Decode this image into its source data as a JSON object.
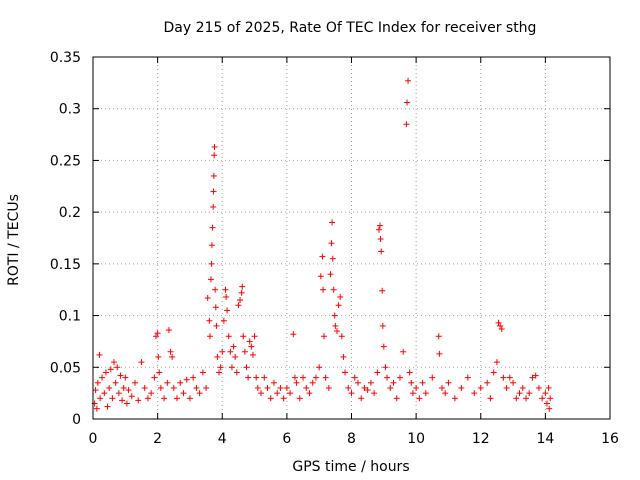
{
  "chart_data": {
    "type": "scatter",
    "title": "Day 215 of 2025, Rate Of TEC Index for receiver sthg",
    "xlabel": "GPS time / hours",
    "ylabel": "ROTI / TECUs",
    "xlim": [
      0,
      16
    ],
    "ylim": [
      0,
      0.35
    ],
    "x_ticks": [
      0,
      2,
      4,
      6,
      8,
      10,
      12,
      14,
      16
    ],
    "x_tick_labels": [
      "0",
      "2",
      "4",
      "6",
      "8",
      "10",
      "12",
      "14",
      "16"
    ],
    "y_ticks": [
      0,
      0.05,
      0.1,
      0.15,
      0.2,
      0.25,
      0.3,
      0.35
    ],
    "y_tick_labels": [
      "0",
      "0.05",
      "0.1",
      "0.15",
      "0.2",
      "0.25",
      "0.3",
      "0.35"
    ],
    "grid": true,
    "marker": "+",
    "color": "#ff0000",
    "series": [
      {
        "name": "ROTI",
        "points": [
          [
            0.05,
            0.015
          ],
          [
            0.08,
            0.028
          ],
          [
            0.12,
            0.01
          ],
          [
            0.15,
            0.035
          ],
          [
            0.2,
            0.062
          ],
          [
            0.22,
            0.02
          ],
          [
            0.28,
            0.04
          ],
          [
            0.35,
            0.025
          ],
          [
            0.4,
            0.045
          ],
          [
            0.45,
            0.012
          ],
          [
            0.5,
            0.03
          ],
          [
            0.55,
            0.048
          ],
          [
            0.6,
            0.02
          ],
          [
            0.65,
            0.055
          ],
          [
            0.7,
            0.035
          ],
          [
            0.75,
            0.05
          ],
          [
            0.8,
            0.025
          ],
          [
            0.85,
            0.042
          ],
          [
            0.9,
            0.018
          ],
          [
            0.95,
            0.03
          ],
          [
            1.0,
            0.04
          ],
          [
            1.05,
            0.015
          ],
          [
            1.1,
            0.028
          ],
          [
            1.2,
            0.022
          ],
          [
            1.3,
            0.035
          ],
          [
            1.4,
            0.018
          ],
          [
            1.5,
            0.055
          ],
          [
            1.6,
            0.03
          ],
          [
            1.7,
            0.02
          ],
          [
            1.8,
            0.025
          ],
          [
            1.9,
            0.04
          ],
          [
            1.95,
            0.08
          ],
          [
            2.0,
            0.083
          ],
          [
            2.02,
            0.06
          ],
          [
            2.05,
            0.045
          ],
          [
            2.1,
            0.03
          ],
          [
            2.2,
            0.02
          ],
          [
            2.3,
            0.035
          ],
          [
            2.35,
            0.086
          ],
          [
            2.4,
            0.065
          ],
          [
            2.45,
            0.06
          ],
          [
            2.5,
            0.03
          ],
          [
            2.6,
            0.02
          ],
          [
            2.7,
            0.035
          ],
          [
            2.8,
            0.025
          ],
          [
            2.9,
            0.038
          ],
          [
            3.0,
            0.02
          ],
          [
            3.1,
            0.04
          ],
          [
            3.2,
            0.03
          ],
          [
            3.3,
            0.025
          ],
          [
            3.4,
            0.045
          ],
          [
            3.5,
            0.03
          ],
          [
            3.55,
            0.117
          ],
          [
            3.6,
            0.095
          ],
          [
            3.62,
            0.08
          ],
          [
            3.65,
            0.135
          ],
          [
            3.67,
            0.15
          ],
          [
            3.68,
            0.168
          ],
          [
            3.7,
            0.185
          ],
          [
            3.72,
            0.205
          ],
          [
            3.73,
            0.22
          ],
          [
            3.74,
            0.235
          ],
          [
            3.75,
            0.255
          ],
          [
            3.76,
            0.263
          ],
          [
            3.78,
            0.125
          ],
          [
            3.8,
            0.108
          ],
          [
            3.82,
            0.09
          ],
          [
            3.85,
            0.06
          ],
          [
            3.9,
            0.045
          ],
          [
            3.95,
            0.05
          ],
          [
            4.0,
            0.065
          ],
          [
            4.05,
            0.095
          ],
          [
            4.1,
            0.125
          ],
          [
            4.12,
            0.118
          ],
          [
            4.15,
            0.105
          ],
          [
            4.2,
            0.08
          ],
          [
            4.25,
            0.065
          ],
          [
            4.3,
            0.05
          ],
          [
            4.35,
            0.07
          ],
          [
            4.4,
            0.06
          ],
          [
            4.45,
            0.045
          ],
          [
            4.5,
            0.11
          ],
          [
            4.55,
            0.115
          ],
          [
            4.6,
            0.122
          ],
          [
            4.62,
            0.128
          ],
          [
            4.65,
            0.08
          ],
          [
            4.7,
            0.065
          ],
          [
            4.75,
            0.05
          ],
          [
            4.8,
            0.04
          ],
          [
            4.85,
            0.075
          ],
          [
            4.9,
            0.07
          ],
          [
            4.95,
            0.062
          ],
          [
            5.0,
            0.08
          ],
          [
            5.05,
            0.04
          ],
          [
            5.1,
            0.03
          ],
          [
            5.2,
            0.025
          ],
          [
            5.3,
            0.04
          ],
          [
            5.4,
            0.03
          ],
          [
            5.5,
            0.02
          ],
          [
            5.6,
            0.035
          ],
          [
            5.7,
            0.025
          ],
          [
            5.8,
            0.03
          ],
          [
            5.9,
            0.02
          ],
          [
            6.0,
            0.03
          ],
          [
            6.1,
            0.025
          ],
          [
            6.2,
            0.082
          ],
          [
            6.25,
            0.04
          ],
          [
            6.3,
            0.035
          ],
          [
            6.4,
            0.02
          ],
          [
            6.5,
            0.04
          ],
          [
            6.6,
            0.03
          ],
          [
            6.7,
            0.025
          ],
          [
            6.8,
            0.035
          ],
          [
            6.9,
            0.04
          ],
          [
            7.0,
            0.05
          ],
          [
            7.05,
            0.138
          ],
          [
            7.1,
            0.157
          ],
          [
            7.12,
            0.125
          ],
          [
            7.15,
            0.08
          ],
          [
            7.2,
            0.04
          ],
          [
            7.3,
            0.03
          ],
          [
            7.35,
            0.14
          ],
          [
            7.38,
            0.17
          ],
          [
            7.4,
            0.19
          ],
          [
            7.42,
            0.155
          ],
          [
            7.45,
            0.125
          ],
          [
            7.48,
            0.1
          ],
          [
            7.5,
            0.09
          ],
          [
            7.55,
            0.085
          ],
          [
            7.6,
            0.11
          ],
          [
            7.65,
            0.118
          ],
          [
            7.7,
            0.08
          ],
          [
            7.75,
            0.06
          ],
          [
            7.8,
            0.045
          ],
          [
            7.9,
            0.03
          ],
          [
            8.0,
            0.025
          ],
          [
            8.1,
            0.04
          ],
          [
            8.2,
            0.035
          ],
          [
            8.3,
            0.02
          ],
          [
            8.4,
            0.03
          ],
          [
            8.5,
            0.028
          ],
          [
            8.6,
            0.035
          ],
          [
            8.7,
            0.025
          ],
          [
            8.8,
            0.045
          ],
          [
            8.85,
            0.183
          ],
          [
            8.88,
            0.187
          ],
          [
            8.9,
            0.174
          ],
          [
            8.92,
            0.162
          ],
          [
            8.95,
            0.124
          ],
          [
            8.97,
            0.09
          ],
          [
            9.0,
            0.07
          ],
          [
            9.05,
            0.05
          ],
          [
            9.1,
            0.04
          ],
          [
            9.2,
            0.03
          ],
          [
            9.3,
            0.035
          ],
          [
            9.4,
            0.02
          ],
          [
            9.5,
            0.04
          ],
          [
            9.6,
            0.065
          ],
          [
            9.7,
            0.285
          ],
          [
            9.72,
            0.306
          ],
          [
            9.75,
            0.327
          ],
          [
            9.8,
            0.045
          ],
          [
            9.85,
            0.035
          ],
          [
            9.9,
            0.025
          ],
          [
            10.0,
            0.03
          ],
          [
            10.1,
            0.02
          ],
          [
            10.2,
            0.035
          ],
          [
            10.3,
            0.025
          ],
          [
            10.5,
            0.04
          ],
          [
            10.7,
            0.08
          ],
          [
            10.72,
            0.063
          ],
          [
            10.8,
            0.03
          ],
          [
            10.9,
            0.025
          ],
          [
            11.0,
            0.035
          ],
          [
            11.2,
            0.02
          ],
          [
            11.4,
            0.03
          ],
          [
            11.6,
            0.04
          ],
          [
            11.8,
            0.025
          ],
          [
            12.0,
            0.03
          ],
          [
            12.2,
            0.035
          ],
          [
            12.3,
            0.02
          ],
          [
            12.4,
            0.045
          ],
          [
            12.5,
            0.055
          ],
          [
            12.55,
            0.093
          ],
          [
            12.6,
            0.09
          ],
          [
            12.65,
            0.087
          ],
          [
            12.7,
            0.04
          ],
          [
            12.8,
            0.03
          ],
          [
            12.9,
            0.04
          ],
          [
            13.0,
            0.035
          ],
          [
            13.1,
            0.02
          ],
          [
            13.2,
            0.025
          ],
          [
            13.3,
            0.03
          ],
          [
            13.4,
            0.02
          ],
          [
            13.5,
            0.025
          ],
          [
            13.6,
            0.04
          ],
          [
            13.7,
            0.042
          ],
          [
            13.8,
            0.03
          ],
          [
            13.9,
            0.02
          ],
          [
            14.0,
            0.025
          ],
          [
            14.05,
            0.015
          ],
          [
            14.1,
            0.03
          ],
          [
            14.12,
            0.01
          ],
          [
            14.15,
            0.02
          ]
        ]
      }
    ]
  }
}
